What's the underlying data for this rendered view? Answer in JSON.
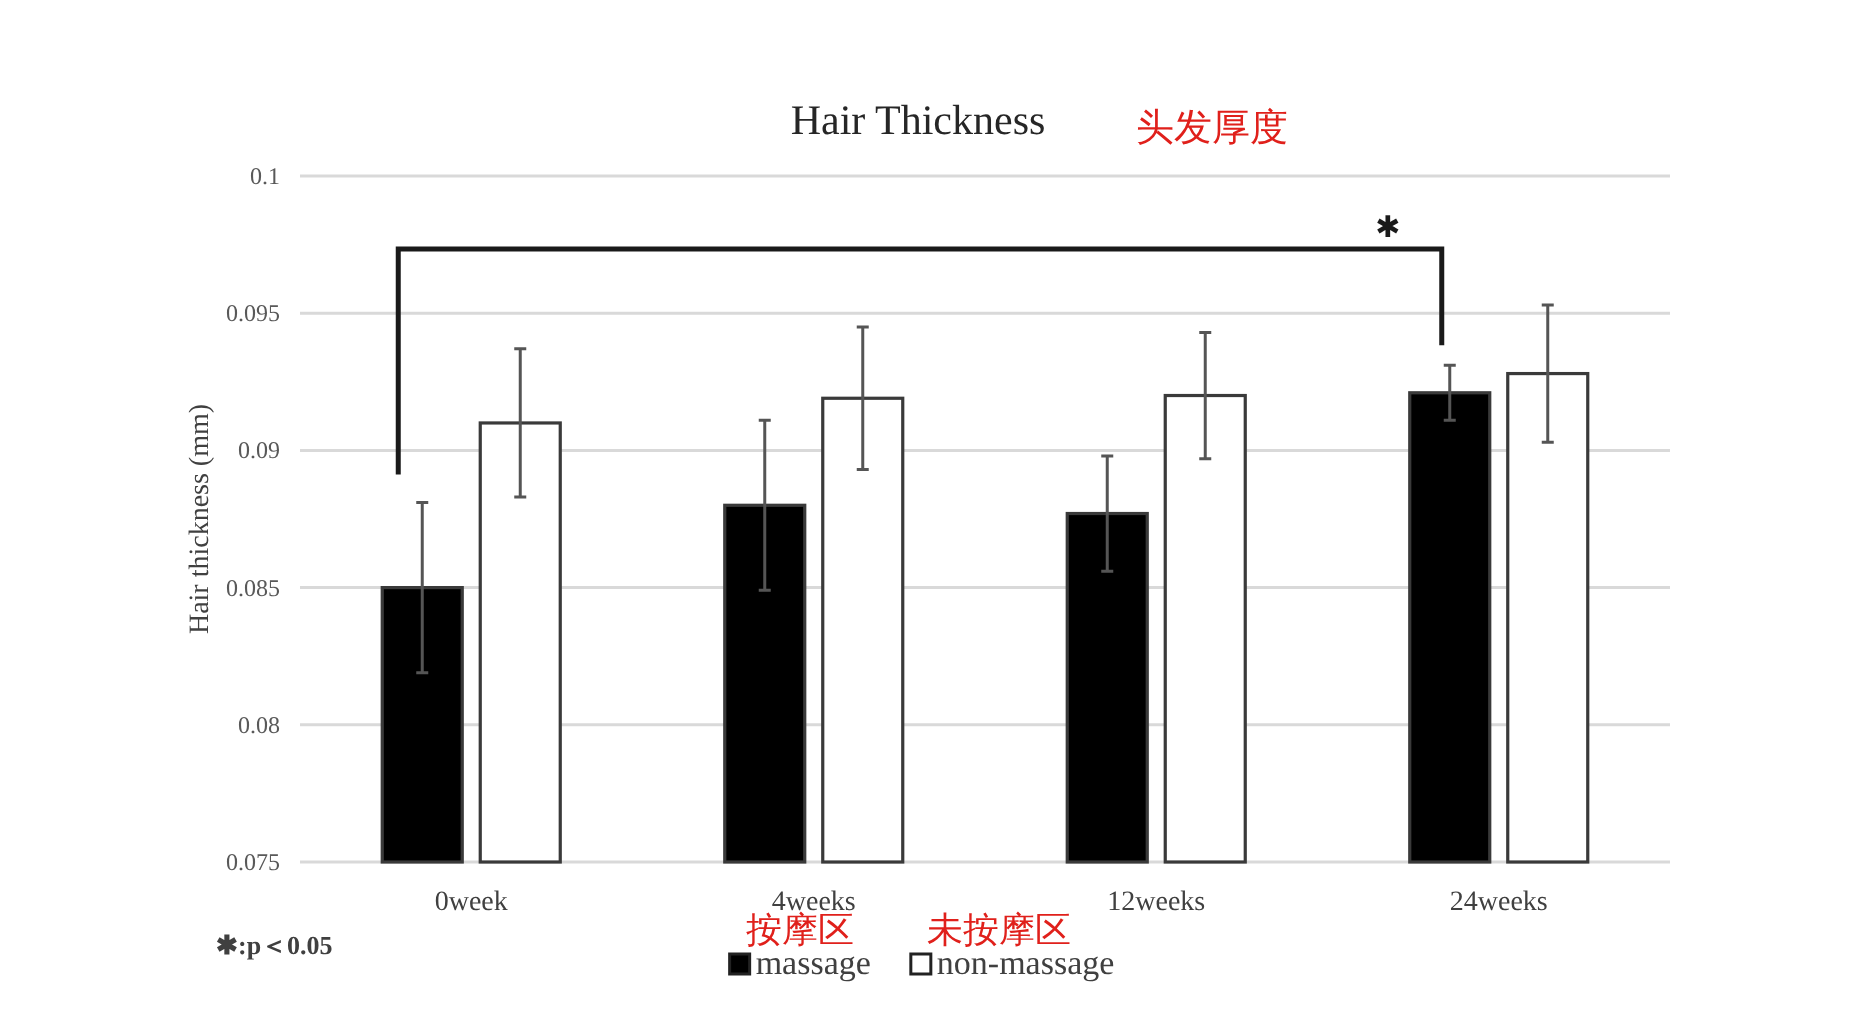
{
  "chart_data": {
    "type": "bar",
    "title": "Hair Thickness",
    "ylabel": "Hair thickness (mm)",
    "categories": [
      "0week",
      "4weeks",
      "12weeks",
      "24weeks"
    ],
    "series": [
      {
        "name": "massage",
        "color": "#000000",
        "values": [
          0.085,
          0.088,
          0.0877,
          0.0921
        ],
        "errors": [
          0.0031,
          0.0031,
          0.0021,
          0.001
        ]
      },
      {
        "name": "non-massage",
        "color": "#ffffff",
        "values": [
          0.091,
          0.0919,
          0.092,
          0.0928
        ],
        "errors": [
          0.0027,
          0.0026,
          0.0023,
          0.0025
        ]
      }
    ],
    "ylim": [
      0.075,
      0.1
    ],
    "yticks": [
      0.075,
      0.08,
      0.085,
      0.09,
      0.095,
      0.1
    ],
    "grid": "y",
    "legend": "bottom",
    "annotations": [
      "头发厚度",
      "✱",
      "✱:p＜0.05",
      "按摩区",
      "未按摩区"
    ]
  }
}
